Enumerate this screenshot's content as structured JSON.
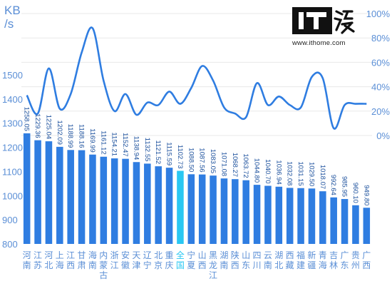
{
  "brand": {
    "logo_text": "IT之家",
    "url": "www.ithome.com"
  },
  "colors": {
    "bar": "#2f7de1",
    "highlight_bar": "#29c7f2",
    "line": "#2f7de1",
    "axis_text": "#5b8fd6",
    "label_text": "#1a4f9c",
    "grid": "#e8e8e8"
  },
  "chart_data": {
    "type": "bar",
    "left_axis_unit": [
      "KB",
      "/s"
    ],
    "ylim": [
      800,
      1600
    ],
    "y_ticks": [
      800,
      900,
      1000,
      1100,
      1200,
      1300,
      1400,
      1500
    ],
    "y2lim": [
      0,
      1
    ],
    "y2_ticks": [
      "0%",
      "20%",
      "40%",
      "60%",
      "80%",
      "100%"
    ],
    "grid": true,
    "highlight_category": "全国",
    "categories": [
      "河南",
      "江苏",
      "河北",
      "上海",
      "江西",
      "甘肃",
      "海南",
      "内蒙古",
      "浙江",
      "安徽",
      "天津",
      "辽宁",
      "北京",
      "重庆",
      "全国",
      "宁夏",
      "山西",
      "黑龙江",
      "湖南",
      "陕西",
      "山东",
      "四川",
      "云南",
      "湖北",
      "西藏",
      "福建",
      "新疆",
      "青海",
      "吉林",
      "广东",
      "贵州",
      "广西"
    ],
    "series": [
      {
        "type": "bar",
        "axis": "left",
        "values": [
          1258.05,
          1229.36,
          1225.04,
          1202.09,
          1188.99,
          1188.16,
          1169.99,
          1161.12,
          1154.21,
          1152.47,
          1138.94,
          1132.55,
          1121.52,
          1115.59,
          1102.73,
          1088.5,
          1087.56,
          1083.05,
          1071.08,
          1068.27,
          1063.72,
          1044.8,
          1040.7,
          1036.94,
          1032.08,
          1031.15,
          1029.5,
          1018.07,
          992.64,
          985.95,
          960.1,
          949.8
        ],
        "labels": [
          "1258.05",
          "1229.36",
          "1225.04",
          "1202.09",
          "1188.99",
          "1188.16",
          "1169.99",
          "1161.12",
          "1154.21",
          "1152.47",
          "1138.94",
          "1132.55",
          "1121.52",
          "1115.59",
          "1102.73",
          "1088.50",
          "1087.56",
          "1083.05",
          "1071.08",
          "1068.27",
          "1063.72",
          "1044.80",
          "1040.70",
          "1036.94",
          "1032.08",
          "1031.15",
          "1029.50",
          "1018.07",
          "992.64",
          "985.95",
          "960.10",
          "949.80"
        ]
      },
      {
        "type": "line",
        "axis": "right",
        "smooth": true,
        "values": [
          0.33,
          0.18,
          0.55,
          0.22,
          0.34,
          0.68,
          0.88,
          0.45,
          0.2,
          0.34,
          0.17,
          0.27,
          0.25,
          0.36,
          0.26,
          0.39,
          0.57,
          0.45,
          0.23,
          0.18,
          0.15,
          0.43,
          0.25,
          0.32,
          0.25,
          0.23,
          0.48,
          0.47,
          0.06,
          0.25,
          0.26,
          0.26
        ]
      }
    ]
  }
}
